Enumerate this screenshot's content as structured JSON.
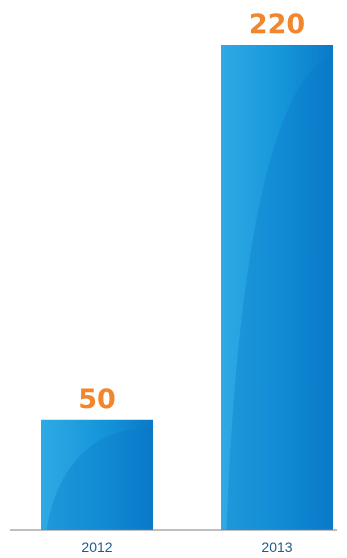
{
  "chart_data": {
    "type": "bar",
    "categories": [
      "2012",
      "2013"
    ],
    "values": [
      50,
      220
    ],
    "data_labels": [
      "50",
      "220"
    ],
    "title": "",
    "xlabel": "",
    "ylabel": "",
    "ylim": [
      0,
      220
    ],
    "grid": false,
    "legend": "none"
  },
  "colors": {
    "bar_light": "#2eaae4",
    "bar_dark": "#0a79c8",
    "label": "#f2862c",
    "axis": "#7f7f7f",
    "tick_text": "#1e5b8c"
  }
}
